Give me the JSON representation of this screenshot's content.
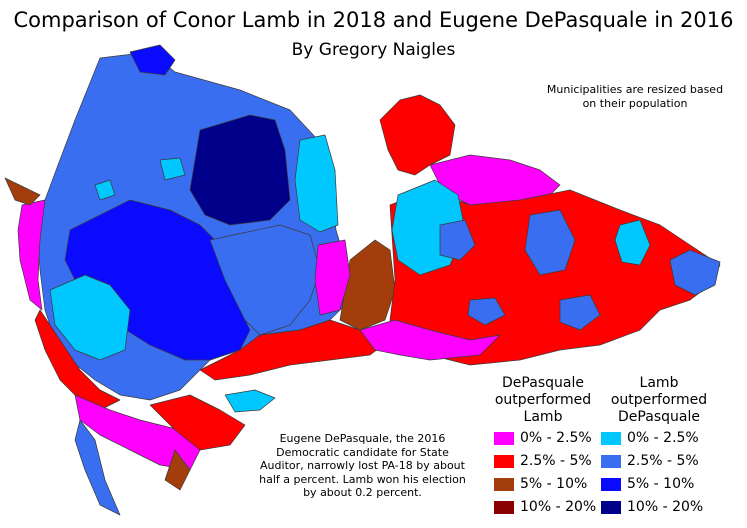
{
  "header": {
    "title": "Comparison of Conor Lamb in 2018 and Eugene DePasquale in 2016",
    "subtitle": "By Gregory Naigles"
  },
  "notes": {
    "resized": "Municipalities are resized based on their population",
    "caption": "Eugene DePasquale, the 2016 Democratic candidate for State Auditor, narrowly lost PA-18 by about half a percent. Lamb won his election by about 0.2 percent."
  },
  "legend": {
    "depasquale_heading": "DePasquale outperformed Lamb",
    "lamb_heading": "Lamb outperformed DePasquale",
    "depasquale": [
      {
        "label": "0% - 2.5%",
        "color": "#ff00ff"
      },
      {
        "label": "2.5% - 5%",
        "color": "#ff0000"
      },
      {
        "label": "5% - 10%",
        "color": "#a33e0c"
      },
      {
        "label": "10% - 20%",
        "color": "#8b0000"
      }
    ],
    "lamb": [
      {
        "label": "0% - 2.5%",
        "color": "#00c8ff"
      },
      {
        "label": "2.5% - 5%",
        "color": "#3a6ef0"
      },
      {
        "label": "5% - 10%",
        "color": "#0a0aff"
      },
      {
        "label": "10% - 20%",
        "color": "#00008b"
      }
    ]
  },
  "colors": {
    "border": "#3a3a3a"
  }
}
